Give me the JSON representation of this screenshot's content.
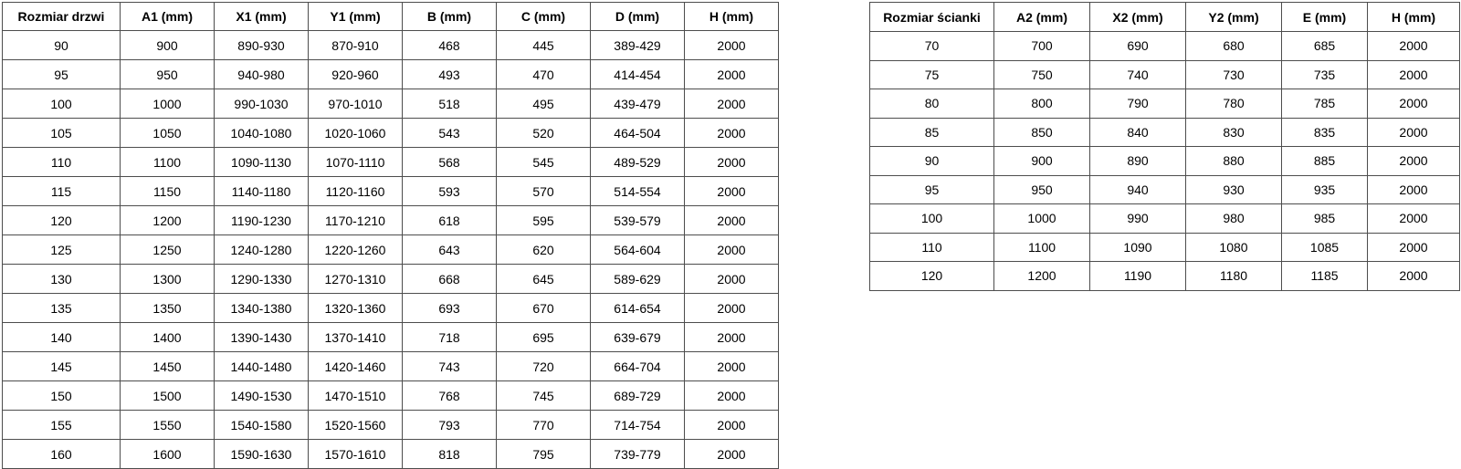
{
  "page": {
    "background_color": "#ffffff",
    "border_color": "#4d4d4d",
    "text_color": "#000000"
  },
  "door_table": {
    "headers": [
      "Rozmiar drzwi",
      "A1 (mm)",
      "X1 (mm)",
      "Y1 (mm)",
      "B (mm)",
      "C (mm)",
      "D (mm)",
      "H (mm)"
    ],
    "rows": [
      [
        "90",
        "900",
        "890-930",
        "870-910",
        "468",
        "445",
        "389-429",
        "2000"
      ],
      [
        "95",
        "950",
        "940-980",
        "920-960",
        "493",
        "470",
        "414-454",
        "2000"
      ],
      [
        "100",
        "1000",
        "990-1030",
        "970-1010",
        "518",
        "495",
        "439-479",
        "2000"
      ],
      [
        "105",
        "1050",
        "1040-1080",
        "1020-1060",
        "543",
        "520",
        "464-504",
        "2000"
      ],
      [
        "110",
        "1100",
        "1090-1130",
        "1070-1110",
        "568",
        "545",
        "489-529",
        "2000"
      ],
      [
        "115",
        "1150",
        "1140-1180",
        "1120-1160",
        "593",
        "570",
        "514-554",
        "2000"
      ],
      [
        "120",
        "1200",
        "1190-1230",
        "1170-1210",
        "618",
        "595",
        "539-579",
        "2000"
      ],
      [
        "125",
        "1250",
        "1240-1280",
        "1220-1260",
        "643",
        "620",
        "564-604",
        "2000"
      ],
      [
        "130",
        "1300",
        "1290-1330",
        "1270-1310",
        "668",
        "645",
        "589-629",
        "2000"
      ],
      [
        "135",
        "1350",
        "1340-1380",
        "1320-1360",
        "693",
        "670",
        "614-654",
        "2000"
      ],
      [
        "140",
        "1400",
        "1390-1430",
        "1370-1410",
        "718",
        "695",
        "639-679",
        "2000"
      ],
      [
        "145",
        "1450",
        "1440-1480",
        "1420-1460",
        "743",
        "720",
        "664-704",
        "2000"
      ],
      [
        "150",
        "1500",
        "1490-1530",
        "1470-1510",
        "768",
        "745",
        "689-729",
        "2000"
      ],
      [
        "155",
        "1550",
        "1540-1580",
        "1520-1560",
        "793",
        "770",
        "714-754",
        "2000"
      ],
      [
        "160",
        "1600",
        "1590-1630",
        "1570-1610",
        "818",
        "795",
        "739-779",
        "2000"
      ]
    ]
  },
  "wall_table": {
    "headers": [
      "Rozmiar ścianki",
      "A2 (mm)",
      "X2 (mm)",
      "Y2 (mm)",
      "E (mm)",
      "H (mm)"
    ],
    "rows": [
      [
        "70",
        "700",
        "690",
        "680",
        "685",
        "2000"
      ],
      [
        "75",
        "750",
        "740",
        "730",
        "735",
        "2000"
      ],
      [
        "80",
        "800",
        "790",
        "780",
        "785",
        "2000"
      ],
      [
        "85",
        "850",
        "840",
        "830",
        "835",
        "2000"
      ],
      [
        "90",
        "900",
        "890",
        "880",
        "885",
        "2000"
      ],
      [
        "95",
        "950",
        "940",
        "930",
        "935",
        "2000"
      ],
      [
        "100",
        "1000",
        "990",
        "980",
        "985",
        "2000"
      ],
      [
        "110",
        "1100",
        "1090",
        "1080",
        "1085",
        "2000"
      ],
      [
        "120",
        "1200",
        "1190",
        "1180",
        "1185",
        "2000"
      ]
    ]
  }
}
